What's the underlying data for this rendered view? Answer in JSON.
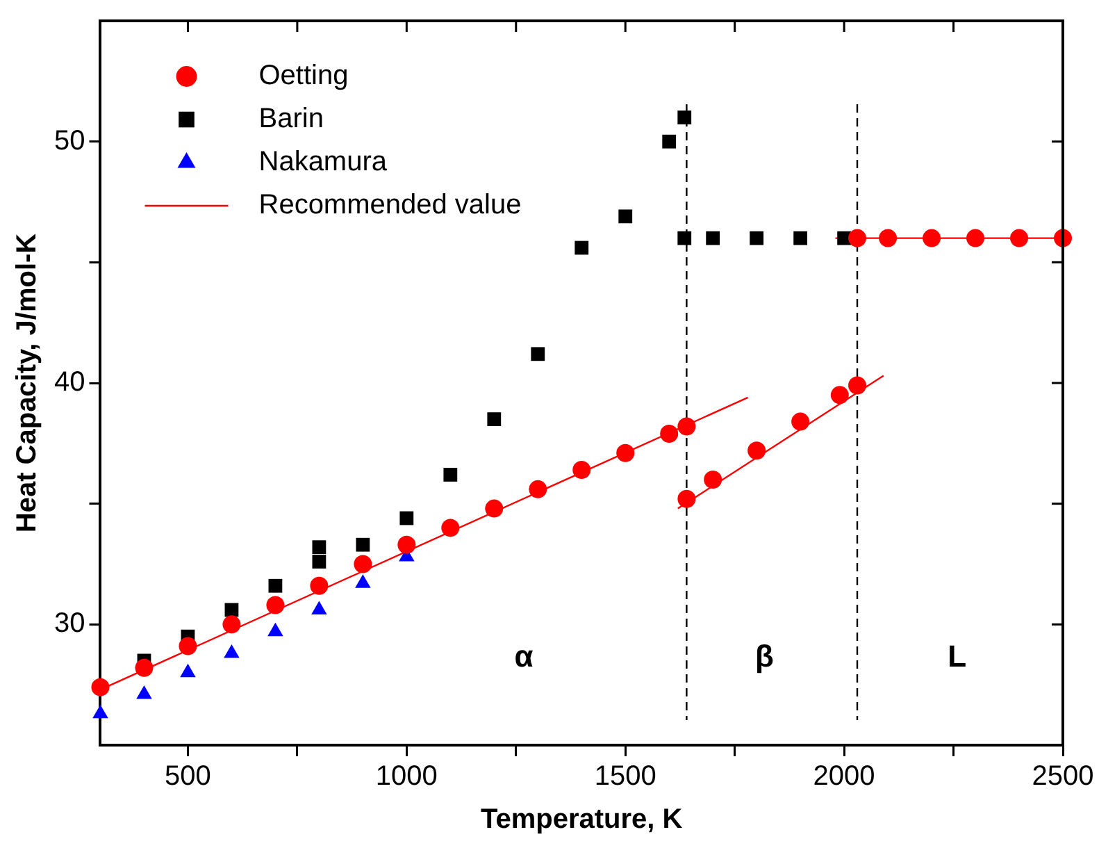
{
  "chart_data": {
    "type": "scatter",
    "xlabel": "Temperature, K",
    "ylabel": "Heat Capacity, J/mol-K",
    "xlim": [
      300,
      2500
    ],
    "ylim": [
      25,
      55
    ],
    "xticks": [
      500,
      {
        "value": 750,
        "label": null
      },
      1000,
      {
        "value": 1250,
        "label": null
      },
      1500,
      {
        "value": 1750,
        "label": null
      },
      2000,
      {
        "value": 2250,
        "label": null
      },
      2500
    ],
    "yticks": [
      30,
      {
        "value": 35,
        "label": null
      },
      40,
      {
        "value": 45,
        "label": null
      },
      50
    ],
    "grid": false,
    "legend": "top left",
    "series": [
      {
        "name": "Oetting",
        "marker": "circle",
        "color": "#ff0000",
        "x": [
          300,
          400,
          500,
          600,
          700,
          800,
          900,
          1000,
          1100,
          1200,
          1300,
          1400,
          1500,
          1600,
          1640,
          1640,
          1700,
          1800,
          1900,
          1990,
          2030,
          2030,
          2100,
          2200,
          2300,
          2400,
          2500
        ],
        "values": [
          27.4,
          28.2,
          29.1,
          30.0,
          30.8,
          31.6,
          32.5,
          33.3,
          34.0,
          34.8,
          35.6,
          36.4,
          37.1,
          37.9,
          38.2,
          35.2,
          36.0,
          37.2,
          38.4,
          39.5,
          39.9,
          46.0,
          46.0,
          46.0,
          46.0,
          46.0,
          46.0
        ]
      },
      {
        "name": "Barin",
        "marker": "square",
        "color": "#000000",
        "x": [
          400,
          500,
          600,
          700,
          800,
          800,
          900,
          1000,
          1100,
          1200,
          1300,
          1400,
          1500,
          1600,
          1635,
          1635,
          1700,
          1800,
          1900,
          2000
        ],
        "values": [
          28.5,
          29.5,
          30.6,
          31.6,
          33.2,
          32.6,
          33.3,
          34.4,
          36.2,
          38.5,
          41.2,
          45.6,
          46.9,
          50.0,
          51.0,
          46.0,
          46.0,
          46.0,
          46.0,
          46.0
        ]
      },
      {
        "name": "Nakamura",
        "marker": "triangle",
        "color": "#0000ff",
        "x": [
          300,
          400,
          500,
          600,
          700,
          800,
          900,
          1000
        ],
        "values": [
          26.3,
          27.1,
          28.0,
          28.8,
          29.7,
          30.6,
          31.7,
          32.8
        ]
      },
      {
        "name": "Recommended value",
        "type": "line",
        "marker": "none",
        "line_style": "solid",
        "color": "#ff0000",
        "x": [
          300,
          1780,
          1700,
          1620,
          2090,
          2040,
          1980,
          2500
        ],
        "values": [
          27.3,
          39.4,
          null,
          34.8,
          40.3,
          null,
          46.0,
          46.0
        ]
      }
    ],
    "ref_lines": [
      {
        "axis": "x",
        "value": 1640,
        "color": "#000000",
        "line_style": "dashed"
      },
      {
        "axis": "x",
        "value": 2030,
        "color": "#000000",
        "line_style": "dashed"
      }
    ],
    "annotations": [
      "α",
      "β",
      "L"
    ]
  }
}
